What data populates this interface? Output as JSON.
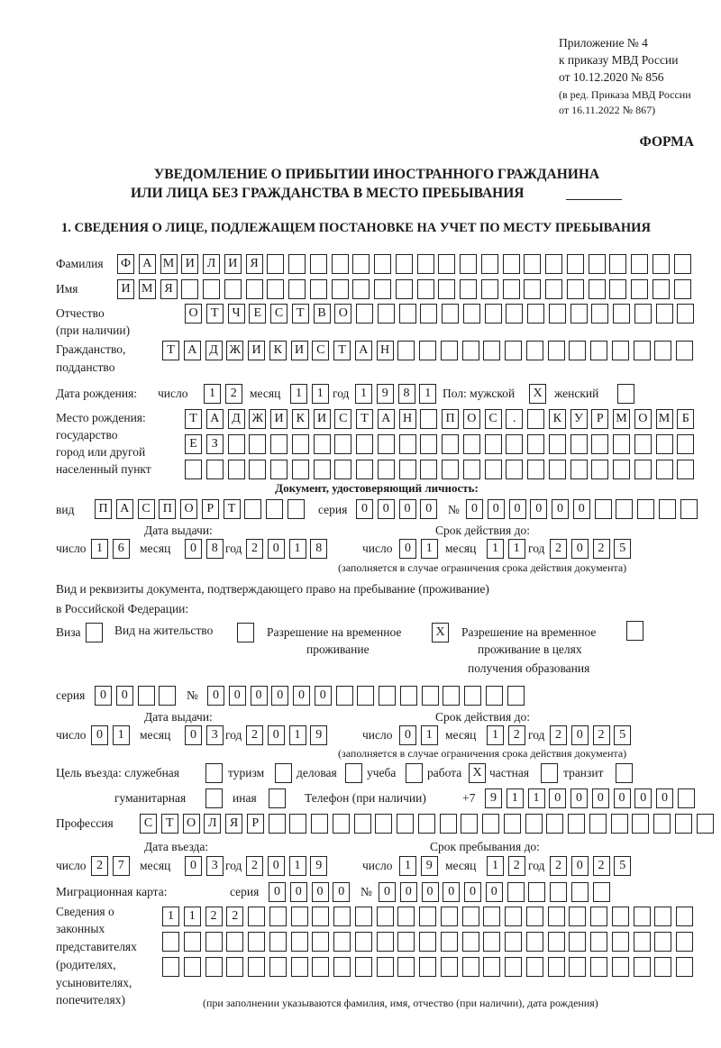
{
  "header": {
    "appendix": "Приложение № 4",
    "order": "к приказу МВД России",
    "order_date": "от 10.12.2020 № 856",
    "amend1": "(в ред. Приказа МВД России",
    "amend2": "от 16.11.2022 № 867)",
    "form": "ФОРМА"
  },
  "title": {
    "line1": "УВЕДОМЛЕНИЕ О ПРИБЫТИИ ИНОСТРАННОГО ГРАЖДАНИНА",
    "line2": "ИЛИ ЛИЦА БЕЗ ГРАЖДАНСТВА В МЕСТО ПРЕБЫВАНИЯ"
  },
  "section1": {
    "heading": "1. СВЕДЕНИЯ О ЛИЦЕ, ПОДЛЕЖАЩЕМ ПОСТАНОВКЕ НА УЧЕТ ПО МЕСТУ ПРЕБЫВАНИЯ"
  },
  "labels": {
    "surname": "Фамилия",
    "name": "Имя",
    "patronymic": "Отчество",
    "patronymic_note": "(при наличии)",
    "citizenship": "Гражданство,",
    "citizenship2": "подданство",
    "dob": "Дата рождения:",
    "day": "число",
    "month": "месяц",
    "year": "год",
    "sex_male": "Пол: мужской",
    "sex_female": "женский",
    "birthplace1": "Место рождения:",
    "birthplace2": "государство",
    "birthplace3": "город или другой",
    "birthplace4": "населенный пункт",
    "id_doc": "Документ, удостоверяющий личность:",
    "kind": "вид",
    "series": "серия",
    "number": "№",
    "issue_date": "Дата выдачи:",
    "valid_until": "Срок действия до:",
    "valid_note": "(заполняется в случае ограничения срока действия документа)",
    "right_doc1": "Вид и реквизиты документа, подтверждающего право на пребывание (проживание)",
    "right_doc2": "в Российской Федерации:",
    "visa": "Виза",
    "residence": "Вид на жительство",
    "temp_res1": "Разрешение на временное",
    "temp_res2": "проживание",
    "temp_edu1": "Разрешение на временное",
    "temp_edu2": "проживание в целях",
    "temp_edu3": "получения образования",
    "purpose": "Цель въезда: служебная",
    "tourism": "туризм",
    "business": "деловая",
    "study": "учеба",
    "work": "работа",
    "private": "частная",
    "transit": "транзит",
    "humanitarian": "гуманитарная",
    "other": "иная",
    "phone": "Телефон (при наличии)",
    "phone_prefix": "+7",
    "profession": "Профессия",
    "entry_date": "Дата въезда:",
    "stay_until": "Срок пребывания до:",
    "migration_card": "Миграционная карта:",
    "reps1": "Сведения о",
    "reps2": "законных",
    "reps3": "представителях",
    "reps4": "(родителях,",
    "reps5": "усыновителях,",
    "reps6": "попечителях)",
    "reps_note": "(при заполнении указываются фамилия, имя, отчество (при наличии), дата рождения)"
  },
  "person": {
    "surname": "ФАМИЛИЯ",
    "name": "ИМЯ",
    "patronymic": "ОТЧЕСТВО",
    "citizenship": "ТАДЖИКИСТАН",
    "dob": {
      "day": "12",
      "month": "11",
      "year": "1981"
    },
    "sex": {
      "male": "X",
      "female": ""
    },
    "birthplace": [
      "ТАДЖИКИСТАН ПОС. КУРМОМБ",
      "ЕЗ",
      ""
    ],
    "id_doc": {
      "kind": "ПАСПОРТ",
      "series": "0000",
      "number": "000000",
      "issue": {
        "day": "16",
        "month": "08",
        "year": "2018"
      },
      "valid": {
        "day": "01",
        "month": "11",
        "year": "2025"
      }
    },
    "right_doc": {
      "visa": "",
      "residence": "",
      "temp_res": "X",
      "temp_edu": "",
      "series": "00",
      "number": "000000",
      "issue": {
        "day": "01",
        "month": "03",
        "year": "2019"
      },
      "valid": {
        "day": "01",
        "month": "12",
        "year": "2025"
      }
    },
    "purpose": {
      "official": "",
      "tourism": "",
      "business": "",
      "study": "",
      "work": "X",
      "private": "",
      "transit": "",
      "humanitarian": "",
      "other": ""
    },
    "phone": "911000000",
    "profession": "СТОЛЯР",
    "entry": {
      "day": "27",
      "month": "03",
      "year": "2019"
    },
    "stay_until": {
      "day": "19",
      "month": "12",
      "year": "2025"
    },
    "migration_card": {
      "series": "0000",
      "number": "000000"
    },
    "representatives": [
      "1122",
      "",
      ""
    ]
  }
}
